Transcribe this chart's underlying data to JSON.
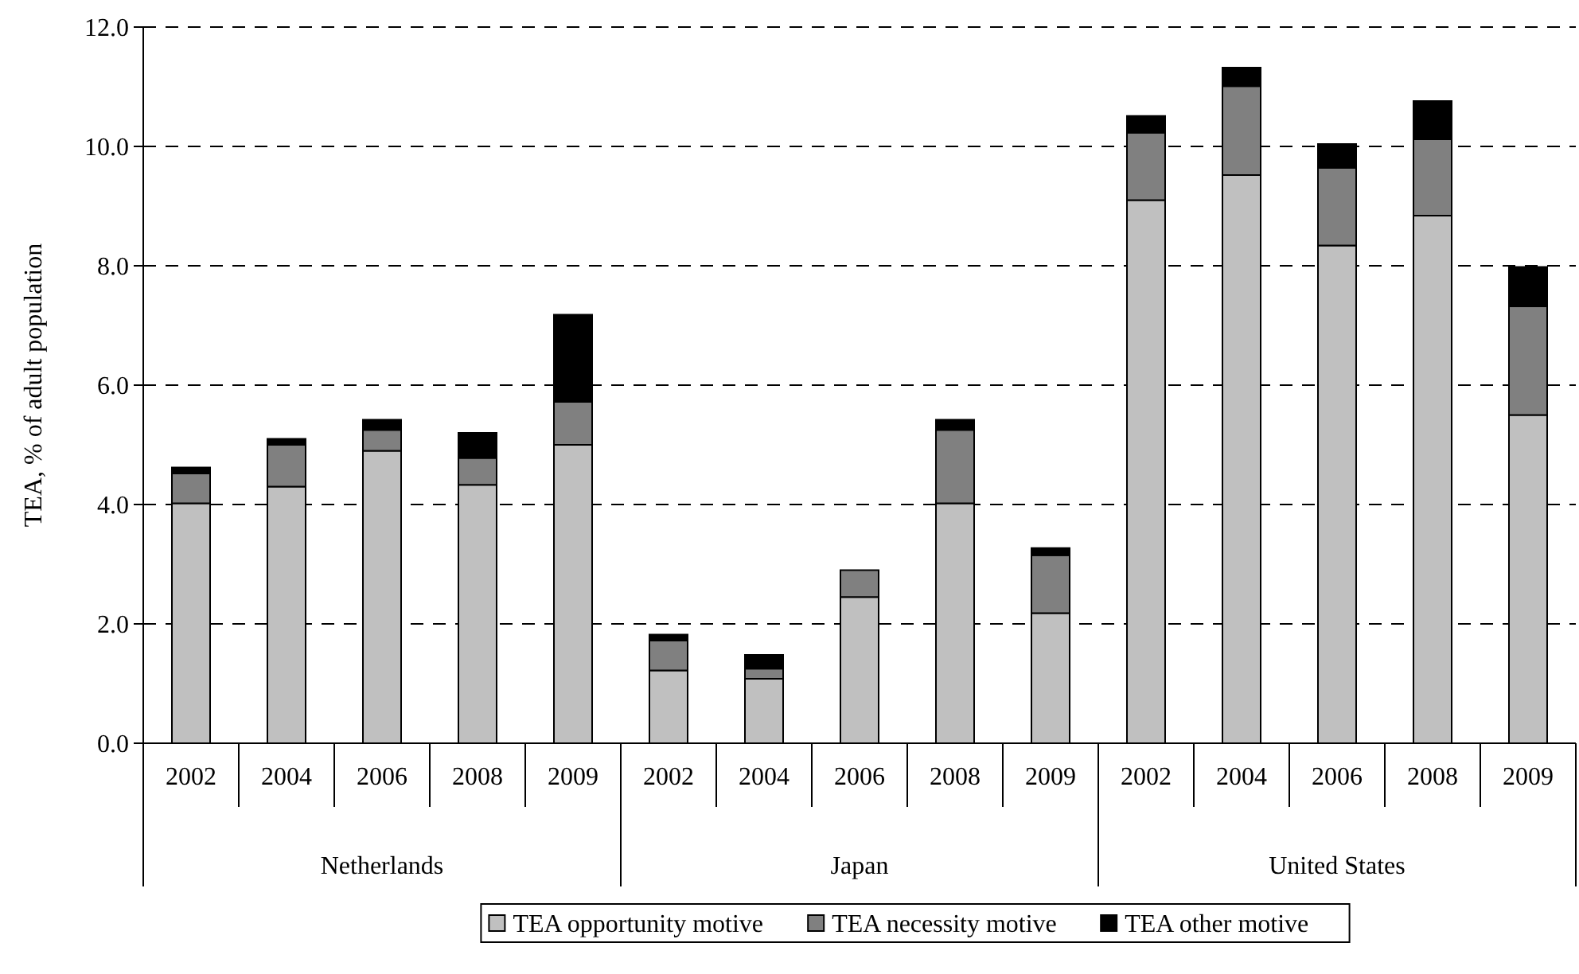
{
  "chart_data": {
    "type": "bar",
    "stacked": true,
    "ylabel": "TEA, % of adult population",
    "categories": [
      "2002",
      "2004",
      "2006",
      "2008",
      "2009",
      "2002",
      "2004",
      "2006",
      "2008",
      "2009",
      "2002",
      "2004",
      "2006",
      "2008",
      "2009"
    ],
    "series": [
      {
        "name": "TEA opportunity motive",
        "color": "#c0c0c0",
        "values": [
          4.02,
          4.3,
          4.9,
          4.33,
          5.0,
          1.22,
          1.08,
          2.45,
          4.02,
          2.18,
          9.1,
          9.52,
          8.34,
          8.84,
          5.5
        ]
      },
      {
        "name": "TEA necessity motive",
        "color": "#808080",
        "values": [
          0.5,
          0.7,
          0.35,
          0.45,
          0.72,
          0.5,
          0.17,
          0.45,
          1.23,
          0.97,
          1.13,
          1.49,
          1.3,
          1.28,
          1.82
        ]
      },
      {
        "name": "TEA other motive",
        "color": "#000000",
        "values": [
          0.1,
          0.1,
          0.17,
          0.42,
          1.46,
          0.1,
          0.23,
          0,
          0.17,
          0.12,
          0.28,
          0.31,
          0.4,
          0.64,
          0.66
        ]
      }
    ],
    "annotations": [
      "Netherlands",
      "Japan",
      "United States"
    ],
    "ylim": [
      0,
      12
    ],
    "yticks": [
      {
        "value": 0,
        "label": "0.0"
      },
      {
        "value": 2,
        "label": "2.0"
      },
      {
        "value": 4,
        "label": "4.0"
      },
      {
        "value": 6,
        "label": "6.0"
      },
      {
        "value": 8,
        "label": "8.0"
      },
      {
        "value": 10,
        "label": "10.0"
      },
      {
        "value": 12,
        "label": "12.0"
      }
    ],
    "grid": "y",
    "legend": "bottom"
  }
}
